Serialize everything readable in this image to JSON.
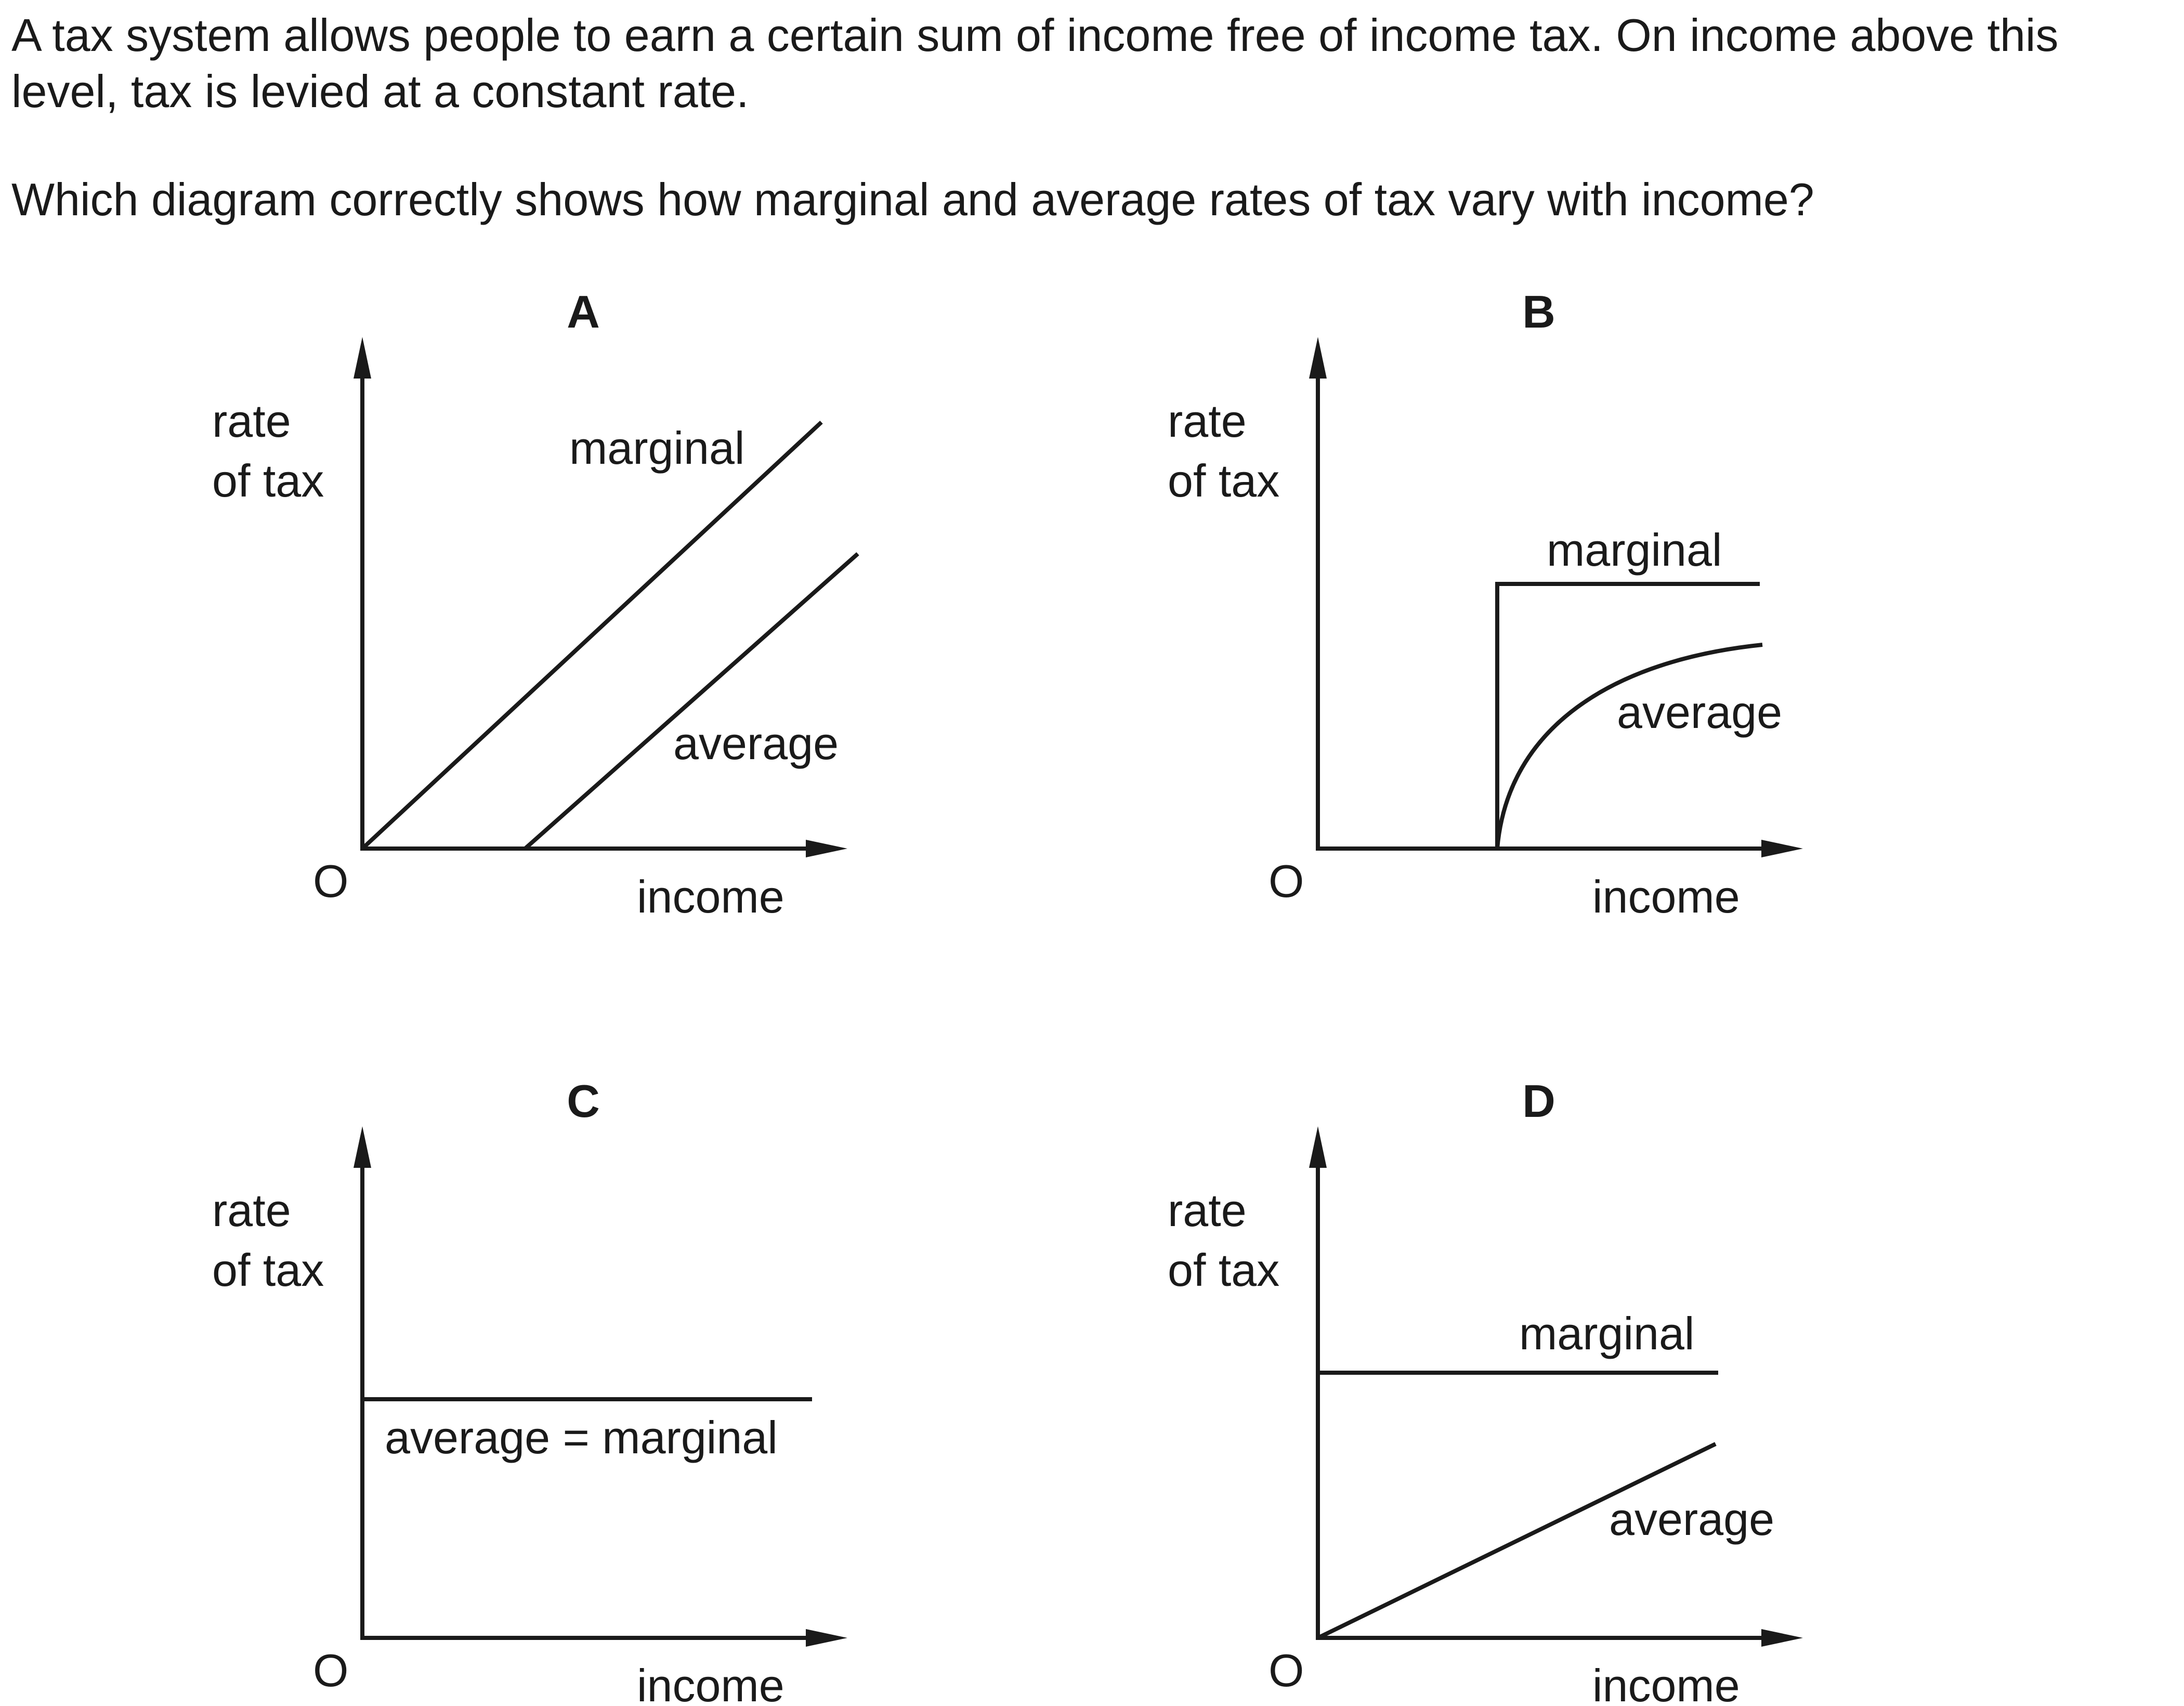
{
  "question": {
    "intro": "A tax system allows people to earn a certain sum of income free of income tax. On income above this level, tax is levied at a constant rate.",
    "ask": "Which diagram correctly shows how marginal and average rates of tax vary with income?"
  },
  "diagrams": {
    "A": {
      "letter": "A",
      "y_label_line1": "rate",
      "y_label_line2": "of tax",
      "x_label": "income",
      "origin": "O",
      "marginal_label": "marginal",
      "average_label": "average"
    },
    "B": {
      "letter": "B",
      "y_label_line1": "rate",
      "y_label_line2": "of tax",
      "x_label": "income",
      "origin": "O",
      "marginal_label": "marginal",
      "average_label": "average"
    },
    "C": {
      "letter": "C",
      "y_label_line1": "rate",
      "y_label_line2": "of tax",
      "x_label": "income",
      "origin": "O",
      "combined_label": "average = marginal"
    },
    "D": {
      "letter": "D",
      "y_label_line1": "rate",
      "y_label_line2": "of tax",
      "x_label": "income",
      "origin": "O",
      "marginal_label": "marginal",
      "average_label": "average"
    }
  }
}
